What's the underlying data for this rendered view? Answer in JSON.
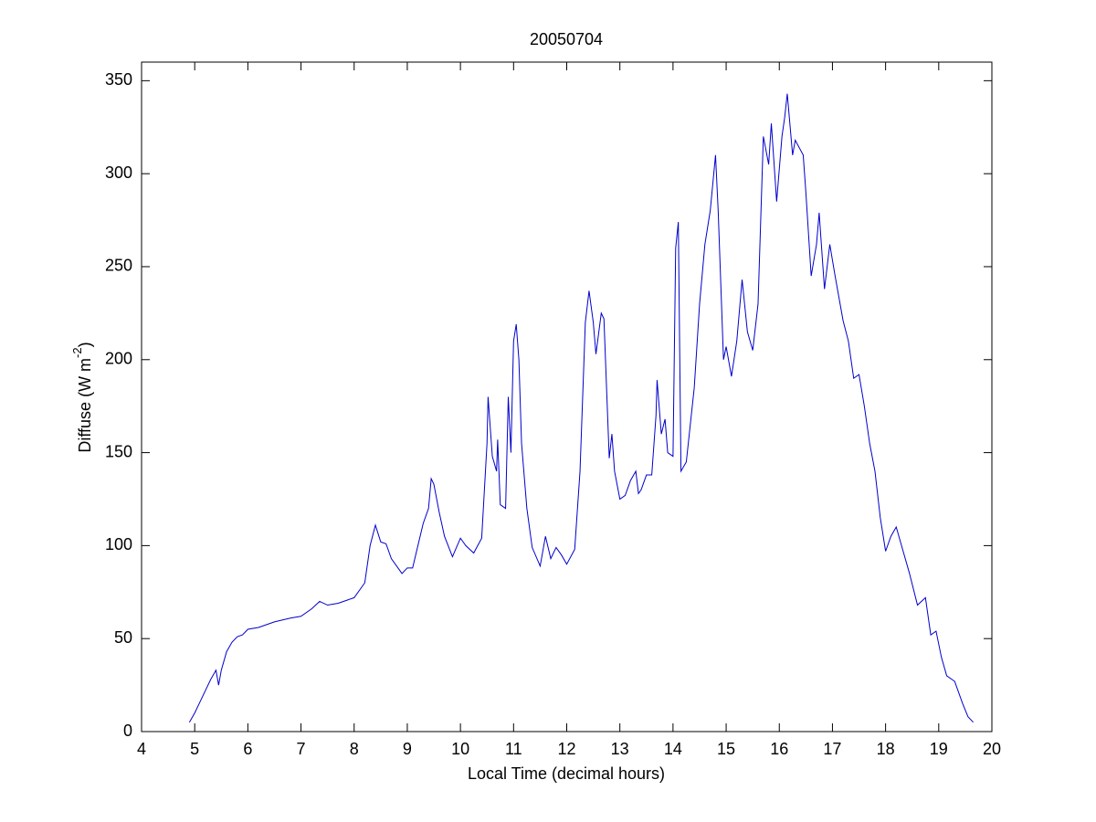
{
  "chart_data": {
    "type": "line",
    "title": "20050704",
    "xlabel": "Local Time (decimal hours)",
    "ylabel": [
      "Diffuse (W m",
      "-2",
      ")"
    ],
    "xlim": [
      4,
      20
    ],
    "xticks": [
      4,
      5,
      6,
      7,
      8,
      9,
      10,
      11,
      12,
      13,
      14,
      15,
      16,
      17,
      18,
      19,
      20
    ],
    "ylim": [
      0,
      360
    ],
    "yticks": [
      0,
      50,
      100,
      150,
      200,
      250,
      300,
      350
    ],
    "grid": false,
    "series": [
      {
        "color": "#0000cc",
        "x": [
          4.9,
          5.0,
          5.1,
          5.2,
          5.3,
          5.4,
          5.45,
          5.5,
          5.6,
          5.7,
          5.8,
          5.9,
          6.0,
          6.2,
          6.5,
          6.8,
          7.0,
          7.2,
          7.35,
          7.5,
          7.7,
          8.0,
          8.2,
          8.3,
          8.4,
          8.5,
          8.6,
          8.7,
          8.9,
          9.0,
          9.1,
          9.2,
          9.3,
          9.4,
          9.45,
          9.5,
          9.6,
          9.7,
          9.85,
          10.0,
          10.1,
          10.25,
          10.4,
          10.5,
          10.52,
          10.6,
          10.68,
          10.7,
          10.75,
          10.85,
          10.9,
          10.95,
          11.0,
          11.05,
          11.1,
          11.15,
          11.25,
          11.35,
          11.5,
          11.6,
          11.7,
          11.8,
          11.9,
          12.0,
          12.15,
          12.25,
          12.35,
          12.42,
          12.5,
          12.55,
          12.65,
          12.7,
          12.8,
          12.85,
          12.9,
          13.0,
          13.1,
          13.2,
          13.3,
          13.35,
          13.4,
          13.5,
          13.6,
          13.68,
          13.7,
          13.78,
          13.85,
          13.9,
          14.0,
          14.05,
          14.1,
          14.15,
          14.25,
          14.4,
          14.5,
          14.6,
          14.7,
          14.8,
          14.85,
          14.95,
          15.0,
          15.1,
          15.2,
          15.3,
          15.4,
          15.5,
          15.6,
          15.7,
          15.8,
          15.85,
          15.95,
          16.05,
          16.1,
          16.15,
          16.25,
          16.3,
          16.45,
          16.5,
          16.6,
          16.7,
          16.75,
          16.85,
          16.95,
          17.05,
          17.2,
          17.3,
          17.4,
          17.5,
          17.6,
          17.7,
          17.8,
          17.9,
          18.0,
          18.1,
          18.2,
          18.3,
          18.45,
          18.6,
          18.75,
          18.85,
          18.95,
          19.05,
          19.15,
          19.3,
          19.45,
          19.55,
          19.65
        ],
        "values": [
          5,
          10,
          16,
          22,
          28,
          33,
          25,
          33,
          43,
          48,
          51,
          52,
          55,
          56,
          59,
          61,
          62,
          66,
          70,
          68,
          69,
          72,
          80,
          100,
          111,
          102,
          101,
          93,
          85,
          88,
          88,
          100,
          112,
          120,
          136,
          133,
          118,
          105,
          94,
          104,
          100,
          96,
          104,
          155,
          180,
          148,
          140,
          157,
          122,
          120,
          180,
          150,
          210,
          219,
          200,
          155,
          120,
          99,
          89,
          105,
          93,
          99,
          95,
          90,
          98,
          140,
          220,
          237,
          220,
          203,
          225,
          222,
          147,
          160,
          140,
          125,
          127,
          135,
          140,
          128,
          130,
          138,
          138,
          170,
          189,
          160,
          168,
          150,
          148,
          260,
          274,
          140,
          145,
          185,
          230,
          262,
          280,
          310,
          280,
          200,
          207,
          191,
          210,
          243,
          215,
          205,
          230,
          320,
          305,
          327,
          285,
          320,
          330,
          343,
          310,
          318,
          310,
          290,
          245,
          262,
          279,
          238,
          262,
          245,
          221,
          210,
          190,
          192,
          175,
          155,
          140,
          115,
          97,
          105,
          110,
          100,
          85,
          68,
          72,
          52,
          54,
          40,
          30,
          27,
          15,
          8,
          5
        ]
      }
    ]
  }
}
